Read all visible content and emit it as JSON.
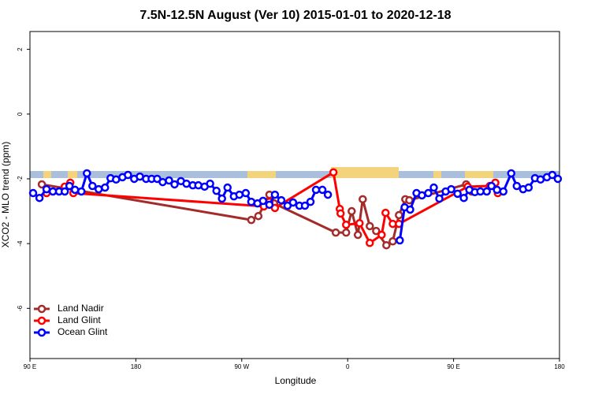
{
  "chart_data": {
    "type": "line",
    "title": "7.5N-12.5N August (Ver 10)   2015-01-01 to 2020-12-18",
    "xlabel": "Longitude",
    "ylabel": "XCO2 - MLO trend (ppm)",
    "xlim": [
      90,
      540
    ],
    "ylim": [
      -7.55,
      2.55
    ],
    "xticks": [
      {
        "value": 90,
        "label": "90 E"
      },
      180,
      {
        "value": 270,
        "label": "90 W"
      },
      {
        "value": 360,
        "label": "0"
      },
      {
        "value": 450,
        "label": "90 E"
      },
      {
        "value": 540,
        "label": "180"
      }
    ],
    "yticks": [
      -6,
      -4,
      -2,
      0,
      2
    ],
    "legend": "bottom-left",
    "series": [
      {
        "name": "Land Nadir",
        "color": "#a52a2a",
        "x": [
          100.1,
          278.1,
          284.1,
          293.5,
          297.5,
          349.9,
          358.7,
          363.4,
          368.7,
          372.8,
          378.8,
          384.2,
          392.9,
          398.3,
          403.6,
          409.0,
          412.4,
          460.7,
          465.4
        ],
        "values": [
          -2.17,
          -3.27,
          -3.15,
          -2.49,
          -2.76,
          -3.66,
          -3.66,
          -3.0,
          -3.73,
          -2.63,
          -3.46,
          -3.61,
          -4.05,
          -3.93,
          -3.12,
          -2.63,
          -2.66,
          -2.17,
          -2.39
        ]
      },
      {
        "name": "Land Glint",
        "color": "#ff0000",
        "x": [
          104.1,
          119.6,
          124.3,
          126.9,
          288.8,
          293.5,
          298.2,
          347.9,
          353.3,
          354.0,
          358.7,
          370.1,
          378.8,
          388.9,
          392.2,
          398.3,
          403.6,
          462.0,
          480.8,
          485.5,
          487.6
        ],
        "values": [
          -2.44,
          -2.24,
          -2.12,
          -2.44,
          -2.85,
          -2.71,
          -2.9,
          -1.8,
          -2.93,
          -3.07,
          -3.42,
          -3.37,
          -3.98,
          -3.73,
          -3.05,
          -3.39,
          -3.39,
          -2.24,
          -2.22,
          -2.12,
          -2.44
        ]
      },
      {
        "name": "Ocean Glint",
        "color": "#0000ff",
        "x": [
          92.7,
          98.1,
          104.1,
          109.5,
          114.8,
          119.6,
          123.6,
          128.3,
          133.7,
          138.4,
          143.1,
          148.4,
          153.8,
          158.5,
          163.2,
          168.6,
          173.3,
          178.6,
          183.4,
          188.7,
          193.4,
          198.1,
          202.8,
          208.2,
          212.9,
          218.3,
          223.0,
          228.4,
          233.1,
          238.4,
          243.1,
          248.5,
          253.2,
          257.9,
          263.3,
          268.0,
          273.4,
          278.1,
          283.4,
          288.1,
          293.5,
          298.2,
          303.6,
          308.9,
          313.6,
          319.0,
          323.7,
          328.4,
          333.1,
          338.5,
          343.2,
          370.0,
          404.3,
          408.4,
          413.1,
          418.5,
          423.1,
          428.5,
          433.2,
          437.9,
          443.3,
          448.0,
          453.4,
          458.7,
          463.4,
          468.1,
          472.8,
          478.2,
          482.2,
          486.9,
          492.3,
          499.0,
          503.7,
          509.1,
          513.8,
          519.2,
          523.9,
          529.3,
          533.9,
          538.6
        ],
        "values": [
          -2.44,
          -2.59,
          -2.32,
          -2.39,
          -2.39,
          -2.39,
          -2.22,
          -2.34,
          -2.39,
          -1.83,
          -2.22,
          -2.32,
          -2.27,
          -1.98,
          -2.02,
          -1.95,
          -1.88,
          -2.0,
          -1.93,
          -2.0,
          -2.0,
          -2.0,
          -2.1,
          -2.05,
          -2.17,
          -2.07,
          -2.15,
          -2.2,
          -2.2,
          -2.24,
          -2.15,
          -2.37,
          -2.61,
          -2.27,
          -2.54,
          -2.49,
          -2.44,
          -2.71,
          -2.76,
          -2.68,
          -2.8,
          -2.49,
          -2.66,
          -2.83,
          -2.73,
          -2.83,
          -2.83,
          -2.71,
          -2.34,
          -2.34,
          -2.49,
          null,
          -3.9,
          -2.88,
          -2.95,
          -2.44,
          -2.51,
          -2.44,
          -2.27,
          -2.61,
          -2.39,
          -2.32,
          -2.46,
          -2.59,
          -2.34,
          -2.41,
          -2.39,
          -2.39,
          -2.22,
          -2.34,
          -2.39,
          -1.83,
          -2.22,
          -2.32,
          -2.27,
          -1.98,
          -2.02,
          -1.95,
          -1.88,
          -2.0
        ]
      }
    ]
  }
}
